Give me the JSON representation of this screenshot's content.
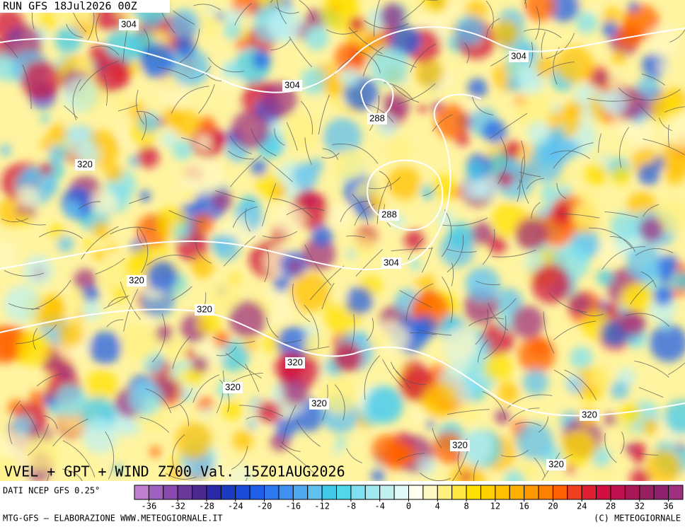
{
  "header": {
    "run": "RUN GFS 18Jul2026 00Z"
  },
  "map": {
    "title": "VVEL + GPT + WIND Z700 Val. 15Z01AUG2026",
    "contour_labels": [
      304,
      304,
      304,
      288,
      320,
      288,
      304,
      320,
      320,
      320,
      320,
      320,
      320,
      320,
      320
    ]
  },
  "colorbar": {
    "source": "DATI NCEP GFS 0.25°",
    "lim": [
      -38,
      38
    ],
    "ticks": [
      -36,
      -32,
      -28,
      -24,
      -20,
      -16,
      -12,
      -8,
      -4,
      0,
      4,
      8,
      12,
      16,
      20,
      24,
      28,
      32,
      36
    ],
    "colors": [
      "#c080d0",
      "#a060c0",
      "#8a4ab0",
      "#6a3a9a",
      "#4a2a90",
      "#2a2aa8",
      "#1a3ac0",
      "#1a4ad8",
      "#2060e8",
      "#3078f0",
      "#4090f0",
      "#50a8f0",
      "#60c0f0",
      "#40c8e8",
      "#50d8e8",
      "#80e0f0",
      "#a0e8f0",
      "#c0f0f0",
      "#e0f8f8",
      "#fffff0",
      "#fff8c0",
      "#fff080",
      "#ffe840",
      "#ffe000",
      "#ffd000",
      "#ffc000",
      "#ffb000",
      "#ff9800",
      "#ff8000",
      "#ff6000",
      "#f04020",
      "#e02030",
      "#d01040",
      "#c01050",
      "#a81858",
      "#982060",
      "#902070",
      "#a03080"
    ]
  },
  "footer": {
    "left": "MTG-GFS — ELABORAZIONE WWW.METEOGIORNALE.IT",
    "right": "(C) METEOGIORNALE"
  }
}
